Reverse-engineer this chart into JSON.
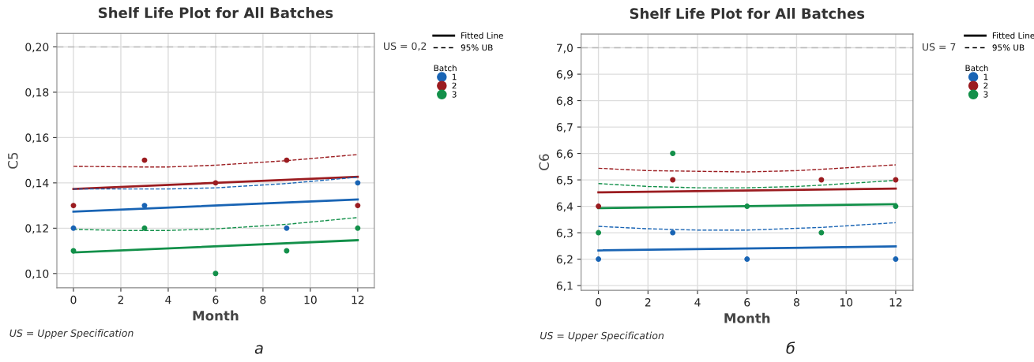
{
  "chart_data": [
    {
      "type": "scatter",
      "title": "Shelf Life Plot for All Batches",
      "xlabel": "Month",
      "ylabel": "C5",
      "legend_title": "Batch",
      "legend": "right",
      "xlim": [
        -0.7,
        12.7
      ],
      "xticks": [
        0,
        2,
        4,
        6,
        8,
        10,
        12
      ],
      "ylim": [
        0.0937,
        0.206
      ],
      "yticks": [
        {
          "value": 0.1,
          "label": "0,10"
        },
        {
          "value": 0.12,
          "label": "0,12"
        },
        {
          "value": 0.14,
          "label": "0,14"
        },
        {
          "value": 0.16,
          "label": "0,16"
        },
        {
          "value": 0.18,
          "label": "0,18"
        },
        {
          "value": 0.2,
          "label": "0,20"
        }
      ],
      "grid": true,
      "ref_lines": [
        {
          "axis": "y",
          "value": 0.2,
          "label": "US = 0,2",
          "color": "#bbbbbb",
          "line_style": "dashed"
        }
      ],
      "annotations": [
        "Fitted Line",
        "95% UB",
        "US = Upper Specification",
        "а"
      ],
      "series": [
        {
          "name": "1",
          "color": "#1964b4",
          "marker": "circle",
          "x": [
            0,
            3,
            9,
            12
          ],
          "values": [
            0.12,
            0.13,
            0.12,
            0.14
          ]
        },
        {
          "name": "2",
          "color": "#9b1c20",
          "marker": "circle",
          "x": [
            0,
            3,
            6,
            9,
            12
          ],
          "values": [
            0.13,
            0.15,
            0.14,
            0.15,
            0.13
          ]
        },
        {
          "name": "3",
          "color": "#13904a",
          "marker": "circle",
          "x": [
            0,
            3,
            6,
            9,
            12
          ],
          "values": [
            0.11,
            0.12,
            0.1,
            0.11,
            0.12
          ]
        },
        {
          "type": "line",
          "color": "#1964b4",
          "line_style": "solid",
          "x": [
            0,
            12
          ],
          "values": [
            0.1273,
            0.1327
          ]
        },
        {
          "type": "line",
          "color": "#9b1c20",
          "line_style": "solid",
          "x": [
            0,
            12
          ],
          "values": [
            0.1373,
            0.1427
          ]
        },
        {
          "type": "line",
          "color": "#13904a",
          "line_style": "solid",
          "x": [
            0,
            12
          ],
          "values": [
            0.1093,
            0.1147
          ]
        },
        {
          "type": "line",
          "color": "#1964b4",
          "line_style": "dashed",
          "x": [
            0,
            3,
            4,
            6,
            9,
            12
          ],
          "values": [
            0.1373,
            0.1373,
            0.1373,
            0.1378,
            0.1397,
            0.1425
          ]
        },
        {
          "type": "line",
          "color": "#9b1c20",
          "line_style": "dashed",
          "x": [
            0,
            3,
            4,
            6,
            9,
            12
          ],
          "values": [
            0.1473,
            0.147,
            0.147,
            0.1478,
            0.1498,
            0.1525
          ]
        },
        {
          "type": "line",
          "color": "#13904a",
          "line_style": "dashed",
          "x": [
            0,
            2,
            4,
            6,
            9,
            12
          ],
          "values": [
            0.1195,
            0.119,
            0.119,
            0.1197,
            0.1217,
            0.1247
          ]
        }
      ]
    },
    {
      "type": "scatter",
      "title": "Shelf Life Plot for All Batches",
      "xlabel": "Month",
      "ylabel": "C6",
      "legend_title": "Batch",
      "legend": "right",
      "xlim": [
        -0.7,
        12.7
      ],
      "xticks": [
        0,
        2,
        4,
        6,
        8,
        10,
        12
      ],
      "ylim": [
        6.082,
        7.052
      ],
      "yticks": [
        {
          "value": 6.1,
          "label": "6,1"
        },
        {
          "value": 6.2,
          "label": "6,2"
        },
        {
          "value": 6.3,
          "label": "6,3"
        },
        {
          "value": 6.4,
          "label": "6,4"
        },
        {
          "value": 6.5,
          "label": "6,5"
        },
        {
          "value": 6.6,
          "label": "6,6"
        },
        {
          "value": 6.7,
          "label": "6,7"
        },
        {
          "value": 6.8,
          "label": "6,8"
        },
        {
          "value": 6.9,
          "label": "6,9"
        },
        {
          "value": 7.0,
          "label": "7,0"
        }
      ],
      "grid": true,
      "ref_lines": [
        {
          "axis": "y",
          "value": 7.0,
          "label": "US = 7",
          "color": "#bbbbbb",
          "line_style": "dashed"
        }
      ],
      "annotations": [
        "Fitted Line",
        "95% UB",
        "US = Upper Specification",
        "б"
      ],
      "series": [
        {
          "name": "1",
          "color": "#1964b4",
          "marker": "circle",
          "x": [
            0,
            3,
            6,
            12
          ],
          "values": [
            6.2,
            6.3,
            6.2,
            6.2
          ]
        },
        {
          "name": "2",
          "color": "#9b1c20",
          "marker": "circle",
          "x": [
            0,
            3,
            9,
            12
          ],
          "values": [
            6.4,
            6.5,
            6.5,
            6.5
          ]
        },
        {
          "name": "3",
          "color": "#13904a",
          "marker": "circle",
          "x": [
            0,
            3,
            6,
            9,
            12
          ],
          "values": [
            6.3,
            6.6,
            6.4,
            6.3,
            6.4
          ]
        },
        {
          "type": "line",
          "color": "#1964b4",
          "line_style": "solid",
          "x": [
            0,
            12
          ],
          "values": [
            6.233,
            6.248
          ]
        },
        {
          "type": "line",
          "color": "#9b1c20",
          "line_style": "solid",
          "x": [
            0,
            12
          ],
          "values": [
            6.453,
            6.467
          ]
        },
        {
          "type": "line",
          "color": "#13904a",
          "line_style": "solid",
          "x": [
            0,
            12
          ],
          "values": [
            6.393,
            6.408
          ]
        },
        {
          "type": "line",
          "color": "#1964b4",
          "line_style": "dashed",
          "x": [
            0,
            2,
            4,
            6,
            9,
            12
          ],
          "values": [
            6.324,
            6.315,
            6.31,
            6.31,
            6.32,
            6.338
          ]
        },
        {
          "type": "line",
          "color": "#9b1c20",
          "line_style": "dashed",
          "x": [
            0,
            2,
            6,
            8,
            9,
            12
          ],
          "values": [
            6.544,
            6.535,
            6.53,
            6.535,
            6.54,
            6.557
          ]
        },
        {
          "type": "line",
          "color": "#13904a",
          "line_style": "dashed",
          "x": [
            0,
            2,
            4,
            6,
            8,
            9,
            12
          ],
          "values": [
            6.486,
            6.475,
            6.47,
            6.47,
            6.475,
            6.48,
            6.498
          ]
        }
      ]
    }
  ]
}
